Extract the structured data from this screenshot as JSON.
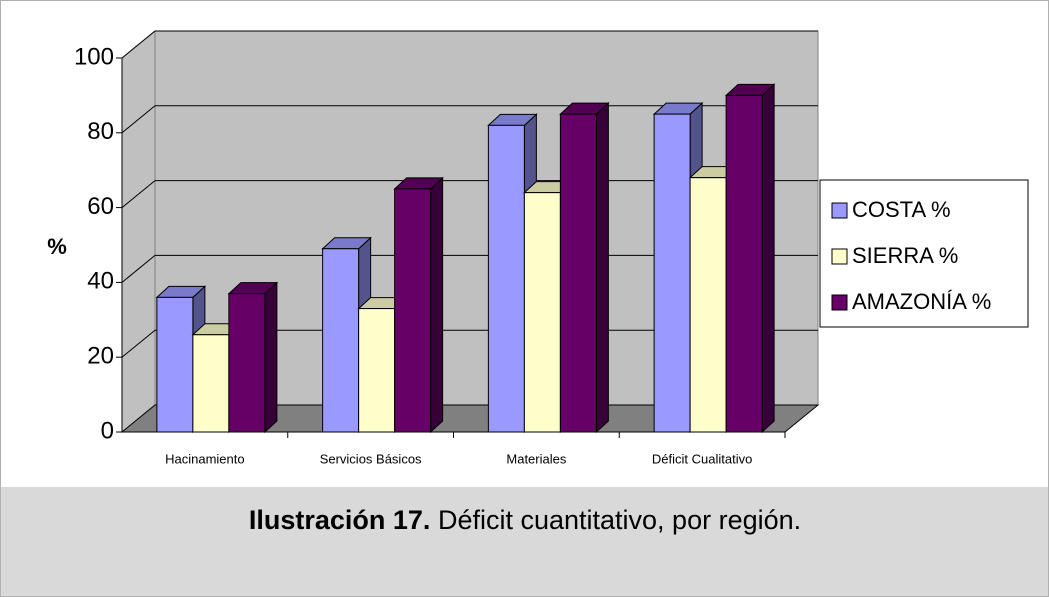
{
  "chart_data": {
    "type": "bar",
    "ylabel": "%",
    "categories": [
      "Hacinamiento",
      "Servicios Básicos",
      "Materiales",
      "Déficit Cualitativo"
    ],
    "series": [
      {
        "name": "COSTA %",
        "color": "#9999ff",
        "values": [
          36,
          49,
          82,
          85
        ]
      },
      {
        "name": "SIERRA %",
        "color": "#ffffcc",
        "values": [
          26,
          33,
          64,
          68
        ]
      },
      {
        "name": "AMAZONÍA %",
        "color": "#660066",
        "values": [
          37,
          65,
          85,
          90
        ]
      }
    ],
    "ylim": [
      0,
      100
    ],
    "yticks": [
      0,
      20,
      40,
      60,
      80,
      100
    ],
    "grid": true,
    "legend": "right"
  },
  "caption": {
    "label": "Ilustración 17.",
    "text": "Déficit cuantitativo, por región."
  }
}
